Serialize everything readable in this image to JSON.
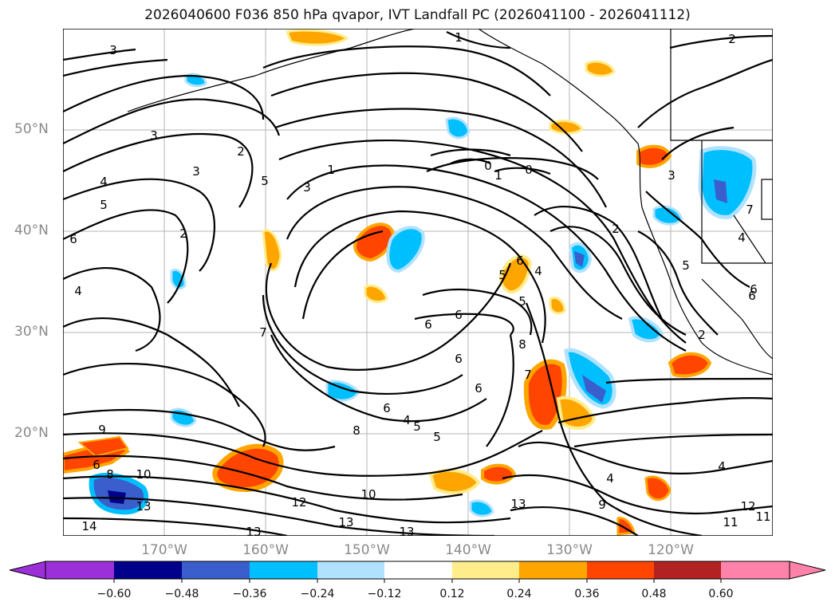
{
  "title": "2026040600 F036 850 hPa qvapor, IVT Landfall PC (2026041100 - 2026041112)",
  "lat_labels": [
    "50°N",
    "40°N",
    "30°N",
    "20°N"
  ],
  "lon_labels": [
    "170°W",
    "160°W",
    "150°W",
    "140°W",
    "130°W",
    "120°W"
  ],
  "colorbar": {
    "ticks": [
      "−0.60",
      "−0.48",
      "−0.36",
      "−0.24",
      "−0.12",
      "0.12",
      "0.24",
      "0.36",
      "0.48",
      "0.60"
    ],
    "colors": [
      "#9b30d8",
      "#00008b",
      "#3a5fcd",
      "#00bfff",
      "#b0e2ff",
      "#ffffff",
      "#ffec8b",
      "#ffa500",
      "#ff4500",
      "#b22222",
      "#ff82ab"
    ]
  },
  "contour_labels": [
    "3",
    "3",
    "3",
    "2",
    "4",
    "2",
    "3",
    "5",
    "5",
    "1",
    "1",
    "2",
    "0",
    "0",
    "1",
    "2",
    "3",
    "6",
    "4",
    "2",
    "6",
    "5",
    "4",
    "5",
    "6",
    "6",
    "5",
    "8",
    "7",
    "6",
    "6",
    "6",
    "6",
    "4",
    "5",
    "5",
    "8",
    "9",
    "10",
    "8",
    "6",
    "13",
    "10",
    "12",
    "14",
    "13",
    "13",
    "13",
    "13",
    "4",
    "4",
    "9",
    "11",
    "11",
    "12",
    "4",
    "6",
    "7",
    "7"
  ]
}
